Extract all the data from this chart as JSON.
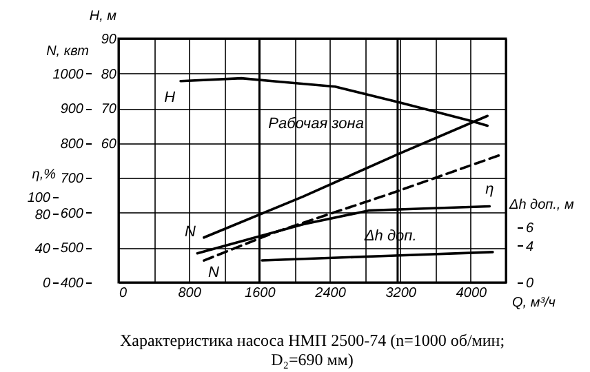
{
  "chart_data": [
    {
      "type": "line",
      "title": "Характеристика насоса НМП 2500-74 (n=1000 об/мин; D₂=690 мм)",
      "xlabel": "Q, м³/ч",
      "ylabel": "H, м",
      "y2label": "N, квт",
      "y3label": "η,%",
      "xlim": [
        0,
        4400
      ],
      "xticks": [
        0,
        {
          "value": 400,
          "label": null
        },
        800,
        {
          "value": 1200,
          "label": null
        },
        1600,
        {
          "value": 2000,
          "label": null
        },
        2400,
        {
          "value": 2800,
          "label": null
        },
        3200,
        {
          "value": 3600,
          "label": null
        },
        4000,
        {
          "value": 4400,
          "label": null
        }
      ],
      "ylim": [
        20,
        90
      ],
      "yticks": [
        {
          "value": 20,
          "label": null
        },
        {
          "value": 30,
          "label": null
        },
        {
          "value": 40,
          "label": null
        },
        {
          "value": 50,
          "label": null
        },
        60,
        70,
        80,
        90
      ],
      "y2lim": [
        400,
        1100
      ],
      "y2ticks": [
        400,
        500,
        600,
        700,
        800,
        900,
        1000
      ],
      "y3lim": [
        0,
        285
      ],
      "y3ticks": [
        0,
        40,
        80,
        100
      ],
      "series": [
        {
          "name": "H",
          "color": "#000000",
          "x": [
            705,
            1395,
            1792,
            2460,
            3200,
            4010,
            4190
          ],
          "values": [
            77.8,
            78.6,
            77.7,
            76.2,
            71.6,
            66.3,
            65
          ]
        },
        {
          "name": "N",
          "color": "#000000",
          "axis": "y2",
          "x": [
            970,
            2100,
            3200,
            4190
          ],
          "values": [
            529,
            647,
            771,
            878
          ]
        },
        {
          "name": "N",
          "color": "#000000",
          "axis": "y2",
          "line_style": "dashed",
          "x": [
            970,
            1787,
            3090,
            4325
          ],
          "values": [
            463,
            545,
            655,
            765
          ]
        },
        {
          "name": "η",
          "color": "#000000",
          "axis": "y3",
          "x": [
            895,
            2100,
            2840,
            3350,
            4215
          ],
          "values": [
            34,
            68,
            84,
            86,
            89
          ]
        }
      ],
      "ref_lines": [
        {
          "axis": "x",
          "value": 1600,
          "color": "#000000"
        },
        {
          "axis": "x",
          "value": 3170,
          "color": "#000000"
        }
      ],
      "annotations": [
        "Рабочая зона"
      ],
      "grid": true,
      "marker": "none",
      "line_style": "solid"
    },
    {
      "type": "line",
      "ylabel": "Δh доп., м",
      "xlim": [
        0,
        4400
      ],
      "ylim": [
        0,
        26.5
      ],
      "yticks": [
        0,
        4,
        6
      ],
      "tick_labels": "y",
      "series": [
        {
          "name": "Δh доп.",
          "color": "#000000",
          "x": [
            1630,
            3090,
            4250
          ],
          "values": [
            2.4,
            2.9,
            3.3
          ]
        }
      ],
      "marker": "none",
      "line_style": "solid"
    }
  ]
}
